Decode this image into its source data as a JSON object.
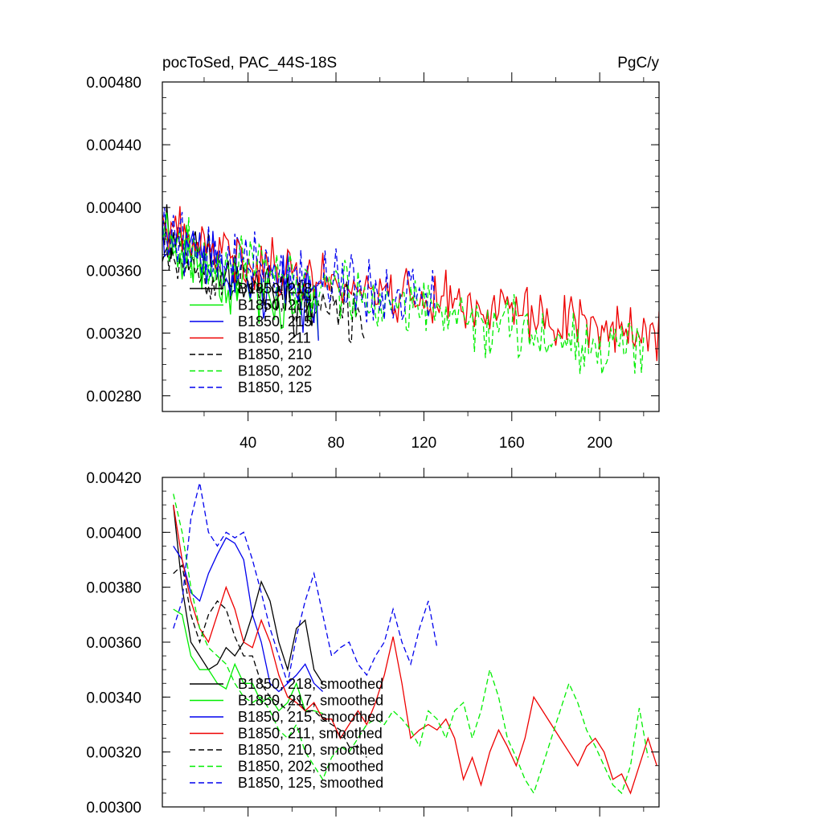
{
  "colors": {
    "black": "#000000",
    "green": "#00ee00",
    "blue": "#0000ee",
    "red": "#ee0000"
  },
  "chart_data": [
    {
      "type": "line",
      "title": "pocToSed, PAC_44S-18S",
      "units": "PgC/y",
      "xlim": [
        1,
        227
      ],
      "ylim": [
        0.0027,
        0.0048
      ],
      "xticks": [
        40,
        80,
        120,
        160,
        200
      ],
      "yticks": [
        "0.00280",
        "0.00320",
        "0.00360",
        "0.00400",
        "0.00440",
        "0.00480"
      ],
      "grid": false,
      "legend_position": "lower-left",
      "series": [
        {
          "name": "B1850, 218",
          "color": "#000000",
          "dash": "solid",
          "x_start": 1,
          "x_end": 72,
          "start": 0.00395,
          "end": 0.00335,
          "amp": 0.00025,
          "seed": 11
        },
        {
          "name": "B1850, 217",
          "color": "#00ee00",
          "dash": "solid",
          "x_start": 1,
          "x_end": 72,
          "start": 0.0039,
          "end": 0.0033,
          "amp": 0.00026,
          "seed": 23
        },
        {
          "name": "B1850, 215",
          "color": "#0000ee",
          "dash": "solid",
          "x_start": 1,
          "x_end": 72,
          "start": 0.00395,
          "end": 0.0034,
          "amp": 0.00027,
          "seed": 37
        },
        {
          "name": "B1850, 211",
          "color": "#ee0000",
          "dash": "solid",
          "x_start": 1,
          "x_end": 227,
          "start": 0.0039,
          "end": 0.0032,
          "amp": 0.00022,
          "seed": 41
        },
        {
          "name": "B1850, 210",
          "color": "#000000",
          "dash": "dashed",
          "x_start": 1,
          "x_end": 93,
          "start": 0.0038,
          "end": 0.0033,
          "amp": 0.00022,
          "seed": 53
        },
        {
          "name": "B1850, 202",
          "color": "#00ee00",
          "dash": "dashed",
          "x_start": 1,
          "x_end": 220,
          "start": 0.0039,
          "end": 0.0031,
          "amp": 0.00024,
          "seed": 67
        },
        {
          "name": "B1850, 125",
          "color": "#0000ee",
          "dash": "dashed",
          "x_start": 1,
          "x_end": 125,
          "start": 0.0039,
          "end": 0.0034,
          "amp": 0.00026,
          "seed": 79
        }
      ]
    },
    {
      "type": "line",
      "title": "",
      "units": "",
      "xlim": [
        1,
        227
      ],
      "ylim": [
        0.003,
        0.0042
      ],
      "xticks": [
        40,
        80,
        120,
        160,
        200
      ],
      "show_xtick_labels": false,
      "yticks": [
        "0.00300",
        "0.00320",
        "0.00340",
        "0.00360",
        "0.00380",
        "0.00400",
        "0.00420"
      ],
      "grid": false,
      "legend_position": "lower-left",
      "series": [
        {
          "name": "B1850, 218, smoothed",
          "color": "#000000",
          "dash": "solid",
          "points": [
            [
              6,
              0.0041
            ],
            [
              10,
              0.0038
            ],
            [
              14,
              0.0036
            ],
            [
              18,
              0.00355
            ],
            [
              22,
              0.0035
            ],
            [
              26,
              0.00352
            ],
            [
              30,
              0.00358
            ],
            [
              34,
              0.00355
            ],
            [
              38,
              0.0036
            ],
            [
              42,
              0.0037
            ],
            [
              46,
              0.00382
            ],
            [
              50,
              0.00375
            ],
            [
              54,
              0.0036
            ],
            [
              58,
              0.0035
            ],
            [
              62,
              0.00365
            ],
            [
              66,
              0.00368
            ],
            [
              70,
              0.0035
            ],
            [
              74,
              0.00345
            ]
          ]
        },
        {
          "name": "B1850, 217, smoothed",
          "color": "#00ee00",
          "dash": "solid",
          "points": [
            [
              6,
              0.00372
            ],
            [
              10,
              0.0037
            ],
            [
              14,
              0.00355
            ],
            [
              18,
              0.0035
            ],
            [
              22,
              0.0035
            ],
            [
              26,
              0.00345
            ],
            [
              30,
              0.00343
            ],
            [
              34,
              0.00352
            ],
            [
              38,
              0.00345
            ],
            [
              42,
              0.00345
            ],
            [
              46,
              0.00338
            ],
            [
              50,
              0.0034
            ],
            [
              54,
              0.00335
            ],
            [
              58,
              0.00338
            ],
            [
              62,
              0.00345
            ],
            [
              66,
              0.00335
            ],
            [
              70,
              0.00335
            ],
            [
              74,
              0.00334
            ]
          ]
        },
        {
          "name": "B1850, 215, smoothed",
          "color": "#0000ee",
          "dash": "solid",
          "points": [
            [
              6,
              0.00395
            ],
            [
              10,
              0.0039
            ],
            [
              14,
              0.00378
            ],
            [
              18,
              0.00375
            ],
            [
              22,
              0.00385
            ],
            [
              26,
              0.00392
            ],
            [
              30,
              0.00398
            ],
            [
              34,
              0.00396
            ],
            [
              38,
              0.0039
            ],
            [
              42,
              0.0037
            ],
            [
              46,
              0.0036
            ],
            [
              50,
              0.00345
            ],
            [
              54,
              0.00342
            ],
            [
              58,
              0.00345
            ],
            [
              62,
              0.00348
            ],
            [
              66,
              0.00352
            ],
            [
              70,
              0.00345
            ],
            [
              74,
              0.00342
            ]
          ]
        },
        {
          "name": "B1850, 211, smoothed",
          "color": "#ee0000",
          "dash": "solid",
          "points": [
            [
              6,
              0.0041
            ],
            [
              10,
              0.0039
            ],
            [
              14,
              0.00375
            ],
            [
              18,
              0.00365
            ],
            [
              22,
              0.0036
            ],
            [
              26,
              0.0037
            ],
            [
              30,
              0.0038
            ],
            [
              34,
              0.00372
            ],
            [
              38,
              0.0036
            ],
            [
              42,
              0.00358
            ],
            [
              46,
              0.00368
            ],
            [
              50,
              0.0036
            ],
            [
              54,
              0.00348
            ],
            [
              58,
              0.0034
            ],
            [
              62,
              0.00338
            ],
            [
              66,
              0.00335
            ],
            [
              70,
              0.00338
            ],
            [
              74,
              0.00332
            ],
            [
              78,
              0.00332
            ],
            [
              82,
              0.00325
            ],
            [
              86,
              0.0033
            ],
            [
              90,
              0.00335
            ],
            [
              94,
              0.0033
            ],
            [
              98,
              0.00338
            ],
            [
              102,
              0.00348
            ],
            [
              106,
              0.00362
            ],
            [
              110,
              0.00345
            ],
            [
              114,
              0.00325
            ],
            [
              118,
              0.00328
            ],
            [
              122,
              0.0033
            ],
            [
              126,
              0.00328
            ],
            [
              130,
              0.00332
            ],
            [
              134,
              0.00325
            ],
            [
              138,
              0.0031
            ],
            [
              142,
              0.00318
            ],
            [
              146,
              0.00308
            ],
            [
              150,
              0.0032
            ],
            [
              154,
              0.00328
            ],
            [
              158,
              0.00322
            ],
            [
              162,
              0.00315
            ],
            [
              166,
              0.00325
            ],
            [
              170,
              0.0034
            ],
            [
              174,
              0.00335
            ],
            [
              178,
              0.0033
            ],
            [
              182,
              0.00325
            ],
            [
              186,
              0.0032
            ],
            [
              190,
              0.00315
            ],
            [
              194,
              0.00322
            ],
            [
              198,
              0.00325
            ],
            [
              202,
              0.0032
            ],
            [
              206,
              0.0031
            ],
            [
              210,
              0.00312
            ],
            [
              214,
              0.00305
            ],
            [
              218,
              0.00315
            ],
            [
              222,
              0.00325
            ],
            [
              226,
              0.00315
            ]
          ]
        },
        {
          "name": "B1850, 210, smoothed",
          "color": "#000000",
          "dash": "dashed",
          "points": [
            [
              6,
              0.00385
            ],
            [
              10,
              0.00388
            ],
            [
              14,
              0.0037
            ],
            [
              18,
              0.0036
            ],
            [
              22,
              0.0037
            ],
            [
              26,
              0.00375
            ],
            [
              30,
              0.00372
            ],
            [
              34,
              0.00362
            ],
            [
              38,
              0.00355
            ],
            [
              42,
              0.00355
            ],
            [
              46,
              0.00345
            ],
            [
              50,
              0.0034
            ],
            [
              54,
              0.00338
            ],
            [
              58,
              0.00335
            ],
            [
              62,
              0.0034
            ],
            [
              66,
              0.00335
            ],
            [
              70,
              0.00335
            ],
            [
              74,
              0.00332
            ],
            [
              78,
              0.0033
            ],
            [
              82,
              0.00328
            ],
            [
              86,
              0.00322
            ],
            [
              90,
              0.00322
            ],
            [
              94,
              0.00318
            ]
          ]
        },
        {
          "name": "B1850, 202, smoothed",
          "color": "#00ee00",
          "dash": "dashed",
          "points": [
            [
              6,
              0.00414
            ],
            [
              10,
              0.004
            ],
            [
              14,
              0.0038
            ],
            [
              18,
              0.00365
            ],
            [
              22,
              0.00358
            ],
            [
              26,
              0.00355
            ],
            [
              30,
              0.00352
            ],
            [
              34,
              0.00345
            ],
            [
              38,
              0.0034
            ],
            [
              42,
              0.00338
            ],
            [
              46,
              0.0034
            ],
            [
              50,
              0.00335
            ],
            [
              54,
              0.00328
            ],
            [
              58,
              0.00325
            ],
            [
              62,
              0.0033
            ],
            [
              66,
              0.0032
            ],
            [
              70,
              0.00315
            ],
            [
              74,
              0.0031
            ],
            [
              78,
              0.00318
            ],
            [
              82,
              0.00322
            ],
            [
              86,
              0.0032
            ],
            [
              90,
              0.00325
            ],
            [
              94,
              0.0033
            ],
            [
              98,
              0.00332
            ],
            [
              102,
              0.0033
            ],
            [
              106,
              0.00335
            ],
            [
              110,
              0.00332
            ],
            [
              114,
              0.00328
            ],
            [
              118,
              0.00322
            ],
            [
              122,
              0.00335
            ],
            [
              126,
              0.00332
            ],
            [
              130,
              0.00325
            ],
            [
              134,
              0.00335
            ],
            [
              138,
              0.00338
            ],
            [
              142,
              0.00325
            ],
            [
              146,
              0.00335
            ],
            [
              150,
              0.0035
            ],
            [
              154,
              0.0034
            ],
            [
              158,
              0.00325
            ],
            [
              162,
              0.00318
            ],
            [
              166,
              0.0031
            ],
            [
              170,
              0.00305
            ],
            [
              174,
              0.00315
            ],
            [
              178,
              0.00325
            ],
            [
              182,
              0.00335
            ],
            [
              186,
              0.00345
            ],
            [
              190,
              0.00338
            ],
            [
              194,
              0.00328
            ],
            [
              198,
              0.00322
            ],
            [
              202,
              0.00315
            ],
            [
              206,
              0.00308
            ],
            [
              210,
              0.00305
            ],
            [
              214,
              0.00315
            ],
            [
              218,
              0.00336
            ],
            [
              222,
              0.00318
            ]
          ]
        },
        {
          "name": "B1850, 125, smoothed",
          "color": "#0000ee",
          "dash": "dashed",
          "points": [
            [
              6,
              0.00365
            ],
            [
              10,
              0.00375
            ],
            [
              14,
              0.00405
            ],
            [
              18,
              0.00418
            ],
            [
              22,
              0.004
            ],
            [
              26,
              0.00395
            ],
            [
              30,
              0.004
            ],
            [
              34,
              0.00398
            ],
            [
              38,
              0.004
            ],
            [
              42,
              0.0039
            ],
            [
              46,
              0.00378
            ],
            [
              50,
              0.00365
            ],
            [
              54,
              0.00355
            ],
            [
              58,
              0.00345
            ],
            [
              62,
              0.00362
            ],
            [
              66,
              0.00375
            ],
            [
              70,
              0.00385
            ],
            [
              74,
              0.0037
            ],
            [
              78,
              0.00355
            ],
            [
              82,
              0.00358
            ],
            [
              86,
              0.0036
            ],
            [
              90,
              0.00352
            ],
            [
              94,
              0.00348
            ],
            [
              98,
              0.00355
            ],
            [
              102,
              0.0036
            ],
            [
              106,
              0.00372
            ],
            [
              110,
              0.0036
            ],
            [
              114,
              0.00352
            ],
            [
              118,
              0.00365
            ],
            [
              122,
              0.00375
            ],
            [
              126,
              0.00358
            ]
          ]
        }
      ]
    }
  ]
}
